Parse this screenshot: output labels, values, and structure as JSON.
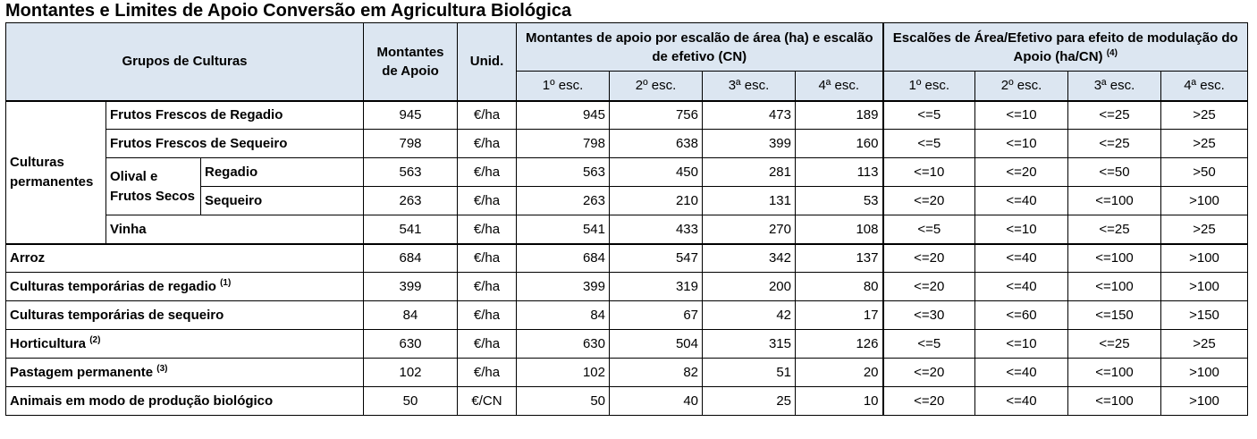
{
  "title": "Montantes e Limites de Apoio Conversão em Agricultura Biológica",
  "headers": {
    "groups": "Grupos de Culturas",
    "amounts": "Montantes de Apoio",
    "unit": "Unid.",
    "support_by_tier": "Montantes de apoio por escalão de área (ha) e escalão de efetivo (CN)",
    "modulation": "Escalões de Área/Efetivo para efeito de modulação do Apoio (ha/CN)",
    "modulation_note": "(4)",
    "tiers": [
      "1º esc.",
      "2º esc.",
      "3ª esc.",
      "4ª esc."
    ],
    "tiers2": [
      "1º esc.",
      "2º esc.",
      "3ª esc.",
      "4ª esc."
    ]
  },
  "permanent": {
    "label": "Culturas permanentes",
    "olive_label": "Olival e Frutos Secos"
  },
  "rows": [
    {
      "name": "Frutos Frescos de Regadio",
      "note": "",
      "amount": "945",
      "unit": "€/ha",
      "e1": "945",
      "e2": "756",
      "e3": "473",
      "e4": "189",
      "m1": "<=5",
      "m2": "<=10",
      "m3": "<=25",
      "m4": ">25"
    },
    {
      "name": "Frutos Frescos de Sequeiro",
      "note": "",
      "amount": "798",
      "unit": "€/ha",
      "e1": "798",
      "e2": "638",
      "e3": "399",
      "e4": "160",
      "m1": "<=5",
      "m2": "<=10",
      "m3": "<=25",
      "m4": ">25"
    },
    {
      "name": "Regadio",
      "note": "",
      "amount": "563",
      "unit": "€/ha",
      "e1": "563",
      "e2": "450",
      "e3": "281",
      "e4": "113",
      "m1": "<=10",
      "m2": "<=20",
      "m3": "<=50",
      "m4": ">50"
    },
    {
      "name": "Sequeiro",
      "note": "",
      "amount": "263",
      "unit": "€/ha",
      "e1": "263",
      "e2": "210",
      "e3": "131",
      "e4": "53",
      "m1": "<=20",
      "m2": "<=40",
      "m3": "<=100",
      "m4": ">100"
    },
    {
      "name": "Vinha",
      "note": "",
      "amount": "541",
      "unit": "€/ha",
      "e1": "541",
      "e2": "433",
      "e3": "270",
      "e4": "108",
      "m1": "<=5",
      "m2": "<=10",
      "m3": "<=25",
      "m4": ">25"
    },
    {
      "name": "Arroz",
      "note": "",
      "amount": "684",
      "unit": "€/ha",
      "e1": "684",
      "e2": "547",
      "e3": "342",
      "e4": "137",
      "m1": "<=20",
      "m2": "<=40",
      "m3": "<=100",
      "m4": ">100"
    },
    {
      "name": "Culturas temporárias de regadio",
      "note": "(1)",
      "amount": "399",
      "unit": "€/ha",
      "e1": "399",
      "e2": "319",
      "e3": "200",
      "e4": "80",
      "m1": "<=20",
      "m2": "<=40",
      "m3": "<=100",
      "m4": ">100"
    },
    {
      "name": "Culturas temporárias de sequeiro",
      "note": "",
      "amount": "84",
      "unit": "€/ha",
      "e1": "84",
      "e2": "67",
      "e3": "42",
      "e4": "17",
      "m1": "<=30",
      "m2": "<=60",
      "m3": "<=150",
      "m4": ">150"
    },
    {
      "name": "Horticultura",
      "note": "(2)",
      "amount": "630",
      "unit": "€/ha",
      "e1": "630",
      "e2": "504",
      "e3": "315",
      "e4": "126",
      "m1": "<=5",
      "m2": "<=10",
      "m3": "<=25",
      "m4": ">25"
    },
    {
      "name": "Pastagem permanente",
      "note": "(3)",
      "amount": "102",
      "unit": "€/ha",
      "e1": "102",
      "e2": "82",
      "e3": "51",
      "e4": "20",
      "m1": "<=20",
      "m2": "<=40",
      "m3": "<=100",
      "m4": ">100"
    },
    {
      "name": "Animais em modo de produção biológico",
      "note": "",
      "amount": "50",
      "unit": "€/CN",
      "e1": "50",
      "e2": "40",
      "e3": "25",
      "e4": "10",
      "m1": "<=20",
      "m2": "<=40",
      "m3": "<=100",
      "m4": ">100"
    }
  ]
}
